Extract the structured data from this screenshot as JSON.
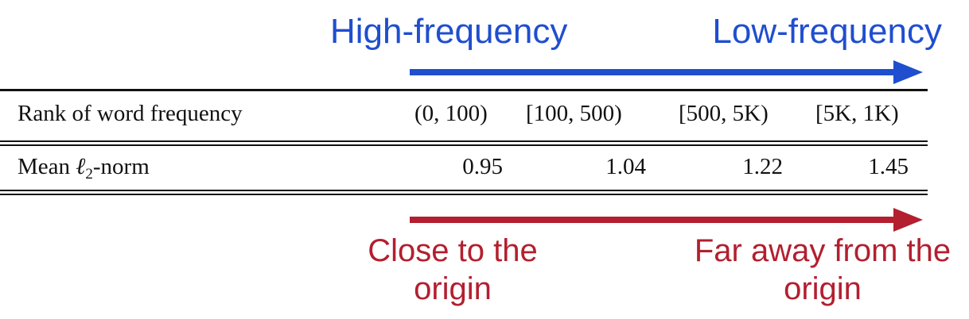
{
  "colors": {
    "blue": "#1f4ecf",
    "red": "#b31f2f",
    "rule": "#111111"
  },
  "top": {
    "left_label": "High-frequency",
    "right_label": "Low-frequency"
  },
  "table": {
    "row1_label": "Rank of word frequency",
    "row2_label_prefix": "Mean ",
    "row2_label_symbol": "ℓ",
    "row2_label_sub": "2",
    "row2_label_suffix": "-norm",
    "headers": [
      "(0, 100)",
      "[100, 500)",
      "[500, 5K)",
      "[5K, 1K)"
    ],
    "values": [
      "0.95",
      "1.04",
      "1.22",
      "1.45"
    ]
  },
  "bottom": {
    "left_label_line1": "Close to the",
    "left_label_line2": "origin",
    "right_label_line1": "Far away from the",
    "right_label_line2": "origin"
  }
}
